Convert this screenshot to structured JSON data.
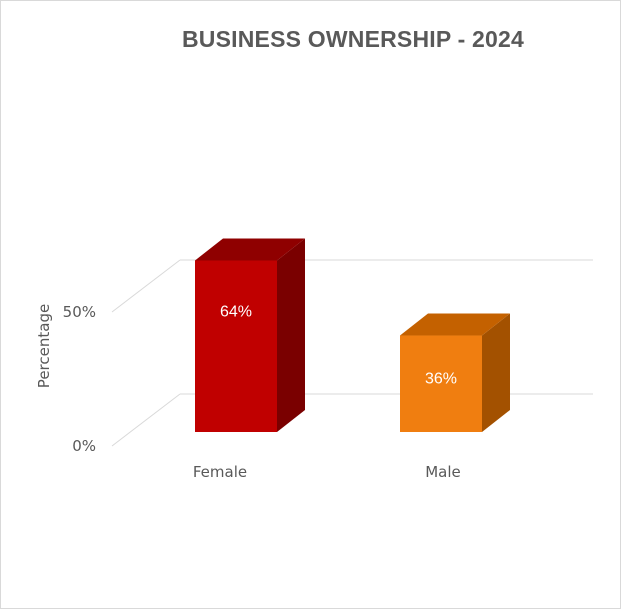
{
  "chart_data": {
    "type": "bar",
    "title": "BUSINESS OWNERSHIP - 2024",
    "ylabel": "Percentage",
    "xlabel": "",
    "categories": [
      "Female",
      "Male"
    ],
    "values": [
      64,
      36
    ],
    "data_labels": [
      "64%",
      "36%"
    ],
    "y_ticks": [
      "0%",
      "50%"
    ],
    "ylim": [
      0,
      100
    ],
    "grid": true,
    "legend": "none",
    "colors": {
      "Female": {
        "front": "#c00000",
        "top": "#8f0000",
        "side": "#7a0000"
      },
      "Male": {
        "front": "#f07e10",
        "top": "#c46100",
        "side": "#a35100"
      },
      "gridline": "#d9d9d9",
      "text": "#595959"
    }
  }
}
